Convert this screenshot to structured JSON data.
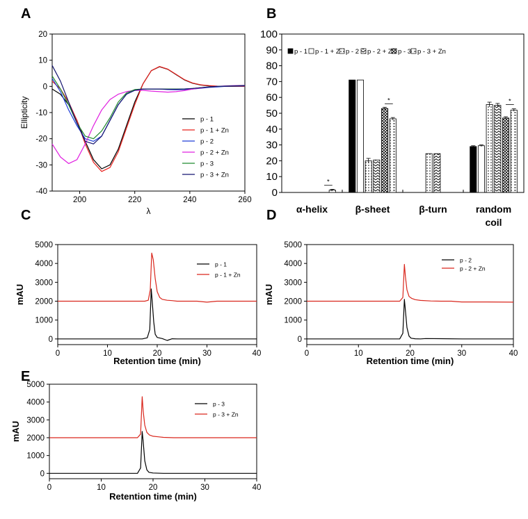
{
  "chart_data": [
    {
      "panel": "A",
      "type": "line",
      "ylabel": "Ellipticity",
      "xlabel": "λ",
      "xlim": [
        190,
        260
      ],
      "ylim": [
        -40,
        20
      ],
      "xticks": [
        200,
        220,
        240,
        260
      ],
      "yticks": [
        -40,
        -30,
        -20,
        -10,
        0,
        10,
        20
      ],
      "series": [
        {
          "name": "p - 1",
          "color": "#000000",
          "x": [
            190,
            193,
            196,
            199,
            202,
            205,
            208,
            211,
            214,
            217,
            220,
            223,
            226,
            229,
            232,
            235,
            238,
            241,
            244,
            247,
            250,
            253,
            256,
            260
          ],
          "y": [
            -1,
            -3,
            -7,
            -13,
            -21,
            -28,
            -31.5,
            -30,
            -24,
            -15,
            -6,
            1,
            6,
            7.5,
            6.5,
            4.5,
            2.5,
            1.2,
            0.5,
            0.2,
            0,
            0,
            0,
            0
          ]
        },
        {
          "name": "p - 1 + Zn",
          "color": "#e8201c",
          "x": [
            190,
            193,
            196,
            199,
            202,
            205,
            208,
            211,
            214,
            217,
            220,
            223,
            226,
            229,
            232,
            235,
            238,
            241,
            244,
            247,
            250,
            253,
            256,
            260
          ],
          "y": [
            2,
            -1,
            -6,
            -13,
            -22,
            -29,
            -32.5,
            -31,
            -25,
            -16,
            -7,
            1,
            6,
            7.6,
            6.6,
            4.6,
            2.6,
            1.3,
            0.6,
            0.3,
            0.1,
            0,
            0,
            0
          ]
        },
        {
          "name": "p - 2",
          "color": "#1f3fd6",
          "x": [
            190,
            193,
            196,
            199,
            202,
            205,
            208,
            211,
            214,
            217,
            220,
            223,
            226,
            229,
            232,
            235,
            238,
            241,
            244,
            247,
            250,
            253,
            256,
            260
          ],
          "y": [
            3,
            -2,
            -9,
            -15,
            -20,
            -21,
            -19,
            -13,
            -7,
            -3,
            -1.5,
            -1,
            -1,
            -1,
            -1.2,
            -1.3,
            -1.2,
            -1,
            -0.7,
            -0.4,
            -0.2,
            0,
            0.1,
            0.2
          ]
        },
        {
          "name": "p - 2 + Zn",
          "color": "#e020e0",
          "x": [
            190,
            193,
            196,
            199,
            202,
            205,
            208,
            211,
            214,
            217,
            220,
            223,
            226,
            229,
            232,
            235,
            238,
            241,
            244,
            247,
            250,
            253,
            256,
            260
          ],
          "y": [
            -22,
            -27,
            -29.5,
            -28,
            -22,
            -15,
            -9,
            -5,
            -3,
            -2,
            -1.5,
            -1.5,
            -1.8,
            -2,
            -2.2,
            -2,
            -1.6,
            -1,
            -0.6,
            -0.2,
            0,
            0.2,
            0.3,
            0.4
          ]
        },
        {
          "name": "p - 3",
          "color": "#1f8a2e",
          "x": [
            190,
            193,
            196,
            199,
            202,
            205,
            208,
            211,
            214,
            217,
            220,
            223,
            226,
            229,
            232,
            235,
            238,
            241,
            244,
            247,
            250,
            253,
            256,
            260
          ],
          "y": [
            4,
            -1,
            -7,
            -14,
            -19,
            -20,
            -17,
            -12,
            -6,
            -2.5,
            -1.2,
            -1,
            -1,
            -1,
            -1,
            -1,
            -1,
            -0.8,
            -0.5,
            -0.2,
            0,
            0.1,
            0.2,
            0.3
          ]
        },
        {
          "name": "p - 3 + Zn",
          "color": "#141470",
          "x": [
            190,
            193,
            196,
            199,
            202,
            205,
            208,
            211,
            214,
            217,
            220,
            223,
            226,
            229,
            232,
            235,
            238,
            241,
            244,
            247,
            250,
            253,
            256,
            260
          ],
          "y": [
            8,
            2,
            -6,
            -14,
            -21,
            -22,
            -19,
            -13,
            -7,
            -3,
            -1.5,
            -1,
            -1,
            -1,
            -1.1,
            -1.1,
            -1,
            -0.8,
            -0.5,
            -0.2,
            0,
            0.1,
            0.2,
            0.3
          ]
        }
      ]
    },
    {
      "panel": "B",
      "type": "bar",
      "ylim": [
        0,
        100
      ],
      "yticks": [
        0,
        10,
        20,
        30,
        40,
        50,
        60,
        70,
        80,
        90,
        100
      ],
      "categories": [
        "α-helix",
        "β-sheet",
        "β-turn",
        "random coil"
      ],
      "series": [
        {
          "name": "p - 1",
          "pattern": "solid",
          "values": [
            0,
            71,
            0,
            29
          ]
        },
        {
          "name": "p - 1 + Zn",
          "pattern": "open",
          "values": [
            0,
            71,
            0,
            29.5
          ]
        },
        {
          "name": "p - 2",
          "pattern": "dots",
          "values": [
            0,
            20,
            24.5,
            55.5
          ]
        },
        {
          "name": "p - 2 + Zn",
          "pattern": "zigzag",
          "values": [
            0,
            20.5,
            24.5,
            55
          ]
        },
        {
          "name": "p - 3",
          "pattern": "cross",
          "values": [
            0,
            53,
            0,
            47
          ]
        },
        {
          "name": "p - 3 + Zn",
          "pattern": "dash",
          "values": [
            1.5,
            46.5,
            0,
            52
          ]
        }
      ],
      "error_bars": [
        [
          0,
          0,
          0,
          0,
          0,
          0.5
        ],
        [
          0,
          0,
          1.5,
          0,
          0.8,
          0.8
        ],
        [
          0,
          0,
          0,
          0,
          0,
          0
        ],
        [
          0.5,
          0.5,
          1.5,
          1.2,
          0.8,
          0.8
        ]
      ],
      "significance": [
        "*",
        "*",
        "*"
      ]
    },
    {
      "panel": "C",
      "type": "line",
      "xlabel": "Retention time (min)",
      "ylabel": "mAU",
      "xlim": [
        0,
        40
      ],
      "ylim": [
        -300,
        5000
      ],
      "xticks": [
        0,
        10,
        20,
        30,
        40
      ],
      "yticks": [
        0,
        1000,
        2000,
        3000,
        4000,
        5000
      ],
      "series": [
        {
          "name": "p - 1",
          "color": "#000000",
          "x": [
            0,
            17,
            18,
            18.5,
            18.8,
            19,
            19.3,
            19.6,
            20,
            21,
            22,
            23,
            24,
            30,
            40
          ],
          "y": [
            0,
            0,
            60,
            500,
            2650,
            2000,
            900,
            250,
            80,
            20,
            -80,
            10,
            0,
            0,
            0
          ]
        },
        {
          "name": "p - 1 + Zn",
          "color": "#d9261c",
          "x": [
            0,
            17.5,
            18.2,
            18.6,
            18.9,
            19.2,
            19.6,
            20,
            20.5,
            21,
            22,
            23,
            24,
            26,
            28,
            30,
            32,
            40
          ],
          "y": [
            2000,
            2000,
            2050,
            2600,
            4550,
            4200,
            3200,
            2500,
            2200,
            2100,
            2050,
            2030,
            2000,
            2000,
            2000,
            1950,
            2000,
            2000
          ]
        }
      ]
    },
    {
      "panel": "D",
      "type": "line",
      "xlabel": "Retention time (min)",
      "ylabel": "mAU",
      "xlim": [
        0,
        40
      ],
      "ylim": [
        -300,
        5000
      ],
      "xticks": [
        0,
        10,
        20,
        30,
        40
      ],
      "yticks": [
        0,
        1000,
        2000,
        3000,
        4000,
        5000
      ],
      "series": [
        {
          "name": "p - 2",
          "color": "#000000",
          "x": [
            0,
            18,
            18.6,
            18.9,
            19.1,
            19.4,
            19.8,
            20.2,
            21,
            22,
            23,
            30,
            40
          ],
          "y": [
            0,
            0,
            300,
            2100,
            1500,
            600,
            150,
            40,
            10,
            0,
            20,
            0,
            0
          ]
        },
        {
          "name": "p - 2 + Zn",
          "color": "#d9261c",
          "x": [
            0,
            18,
            18.6,
            18.9,
            19.1,
            19.4,
            19.8,
            20.3,
            21,
            22,
            24,
            26,
            28,
            29,
            30,
            35,
            40
          ],
          "y": [
            2000,
            2000,
            2200,
            3950,
            3300,
            2600,
            2250,
            2150,
            2080,
            2040,
            2010,
            2000,
            2000,
            1980,
            1960,
            1960,
            1950
          ]
        }
      ]
    },
    {
      "panel": "E",
      "type": "line",
      "xlabel": "Retention time (min)",
      "ylabel": "mAU",
      "xlim": [
        0,
        40
      ],
      "ylim": [
        -300,
        5000
      ],
      "xticks": [
        0,
        10,
        20,
        30,
        40
      ],
      "yticks": [
        0,
        1000,
        2000,
        3000,
        4000,
        5000
      ],
      "series": [
        {
          "name": "p - 3",
          "color": "#000000",
          "x": [
            0,
            17,
            17.6,
            17.9,
            18.1,
            18.4,
            18.8,
            19.2,
            20,
            22,
            25,
            30,
            40
          ],
          "y": [
            0,
            0,
            300,
            2350,
            1800,
            700,
            200,
            60,
            20,
            0,
            0,
            0,
            0
          ]
        },
        {
          "name": "p - 3 + Zn",
          "color": "#d9261c",
          "x": [
            0,
            17,
            17.6,
            17.9,
            18.1,
            18.4,
            18.8,
            19.3,
            20,
            21,
            22,
            24,
            26,
            30,
            40
          ],
          "y": [
            2000,
            2000,
            2200,
            4300,
            3500,
            2700,
            2300,
            2150,
            2080,
            2050,
            2020,
            2000,
            2000,
            2000,
            2000
          ]
        }
      ]
    }
  ]
}
